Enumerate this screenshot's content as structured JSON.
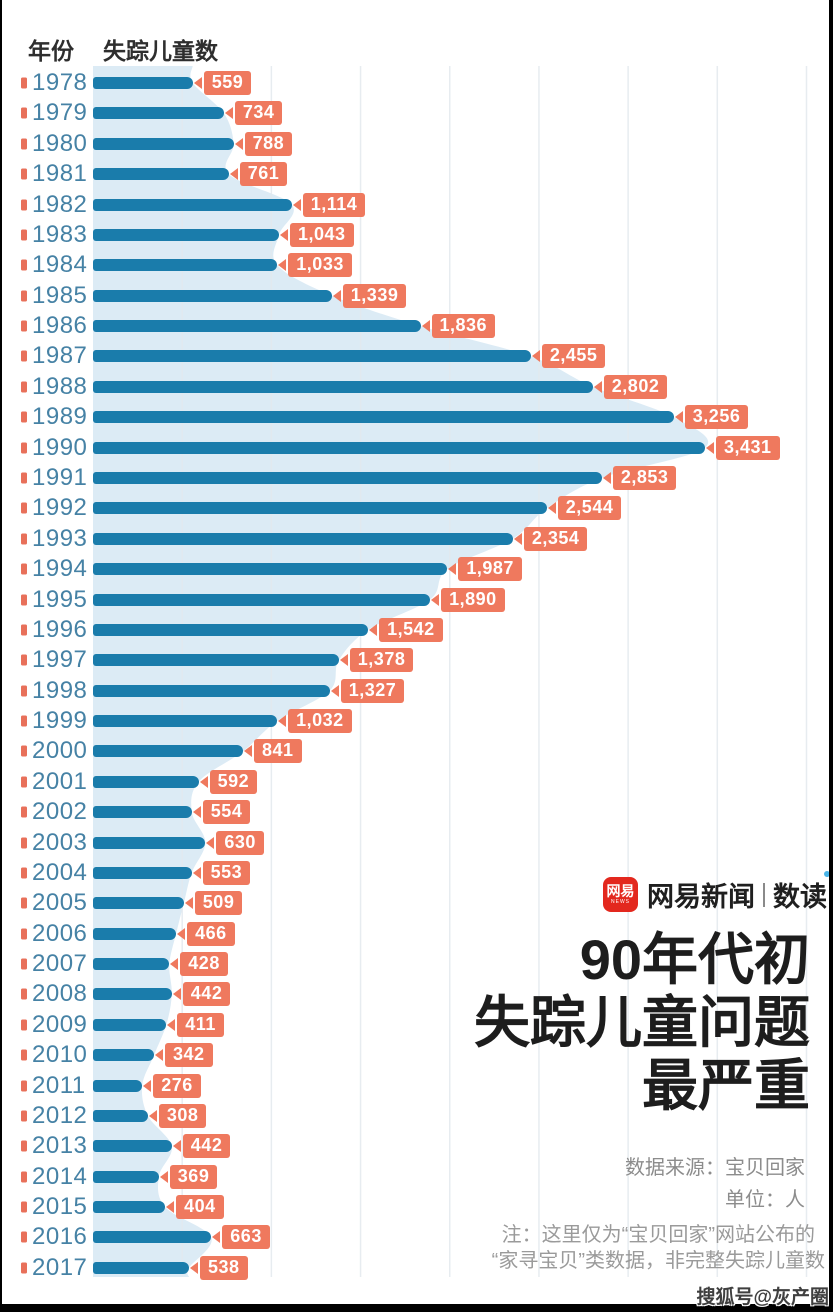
{
  "header": {
    "year_label": "年份",
    "count_label": "失踪儿童数"
  },
  "chart_data": {
    "type": "bar",
    "orientation": "horizontal",
    "title": "90年代初失踪儿童问题最严重",
    "xlabel": "失踪儿童数",
    "ylabel": "年份",
    "unit": "人",
    "xlim": [
      0,
      4000
    ],
    "gridline_step": 500,
    "grid": true,
    "categories": [
      "1978",
      "1979",
      "1980",
      "1981",
      "1982",
      "1983",
      "1984",
      "1985",
      "1986",
      "1987",
      "1988",
      "1989",
      "1990",
      "1991",
      "1992",
      "1993",
      "1994",
      "1995",
      "1996",
      "1997",
      "1998",
      "1999",
      "2000",
      "2001",
      "2002",
      "2003",
      "2004",
      "2005",
      "2006",
      "2007",
      "2008",
      "2009",
      "2010",
      "2011",
      "2012",
      "2013",
      "2014",
      "2015",
      "2016",
      "2017"
    ],
    "values": [
      559,
      734,
      788,
      761,
      1114,
      1043,
      1033,
      1339,
      1836,
      2455,
      2802,
      3256,
      3431,
      2853,
      2544,
      2354,
      1987,
      1890,
      1542,
      1378,
      1327,
      1032,
      841,
      592,
      554,
      630,
      553,
      509,
      466,
      428,
      442,
      411,
      342,
      276,
      308,
      442,
      369,
      404,
      663,
      538
    ],
    "bar_color": "#1a7cab",
    "area_color": "#dcebf5",
    "grid_color": "#e3e9ee",
    "year_color": "#4682a5",
    "tick_color": "#e8705a",
    "label_bg": "#ef795e",
    "label_text_color": "#ffffff"
  },
  "branding": {
    "logo_text": "网易",
    "logo_sub": "NEWS",
    "logo_bg": "#e3281e",
    "brand_name": "网易新闻",
    "brand_divider_color": "#8a8a8a",
    "brand_product": "数读",
    "accent_dot_color": "#4ab5e8"
  },
  "title": {
    "lines": [
      "90年代初",
      "失踪儿童问题",
      "最严重"
    ]
  },
  "source": {
    "label": "数据来源：宝贝回家",
    "unit_label": "单位：人"
  },
  "note": {
    "lines": [
      "注：这里仅为“宝贝回家”网站公布的",
      "“家寻宝贝”类数据，非完整失踪儿童数"
    ]
  },
  "watermark": "搜狐号@灰产圈"
}
